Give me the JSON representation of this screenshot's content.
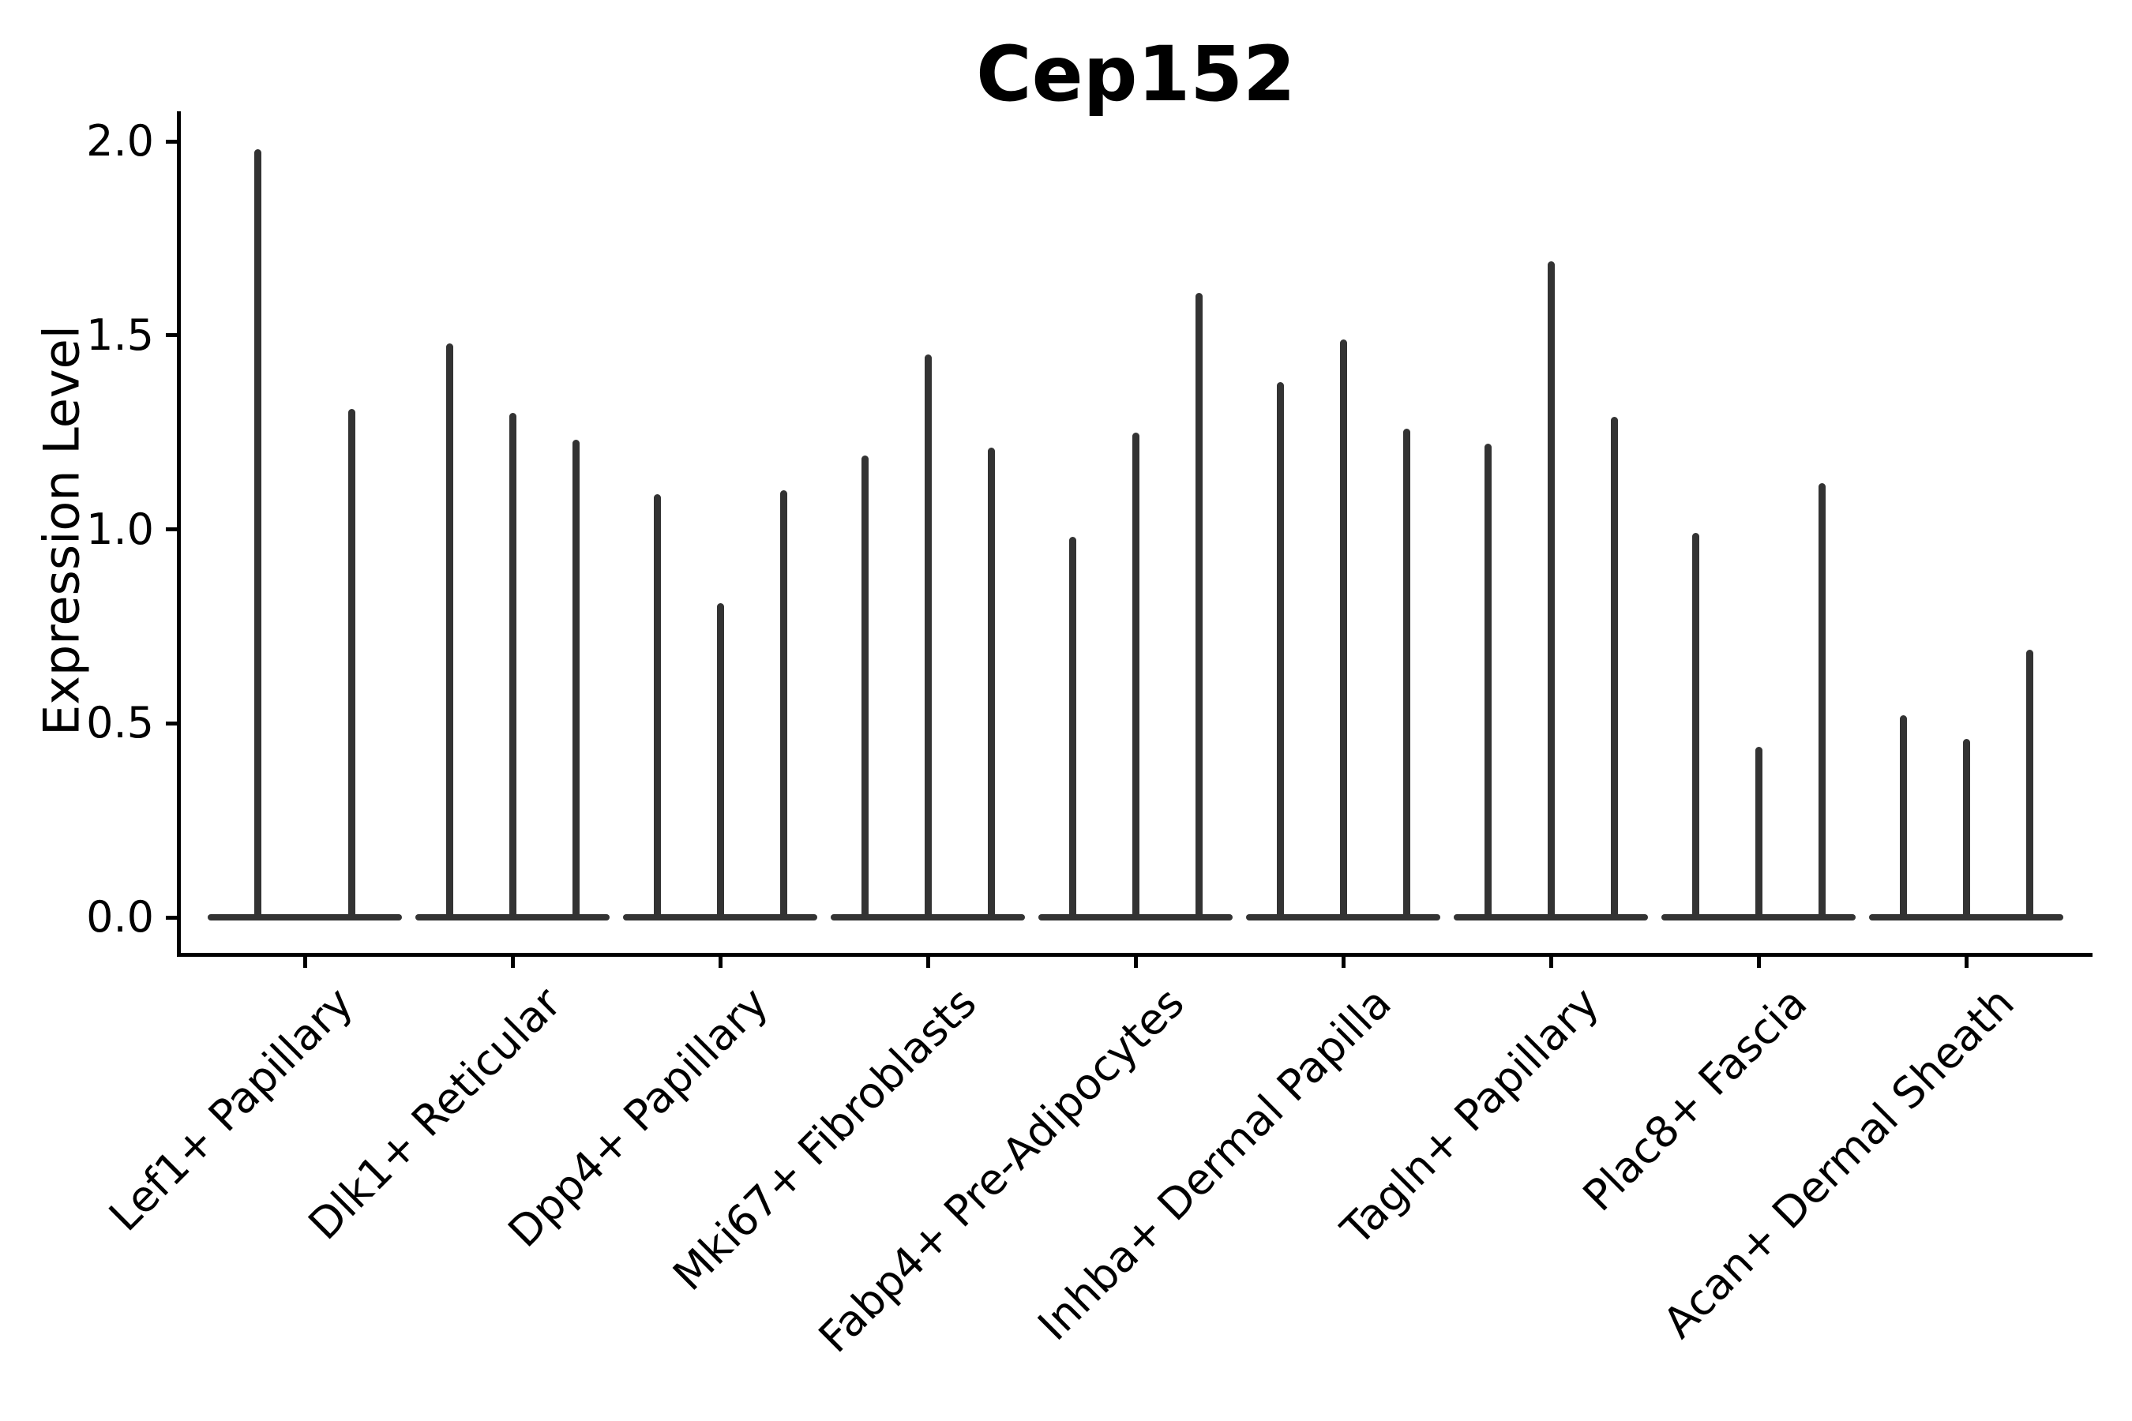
{
  "title": "Cep152",
  "colors": {
    "violin": "#333333",
    "axis": "#000000",
    "text": "#000000",
    "background": "#ffffff"
  },
  "chart_data": {
    "type": "violin",
    "title": "Cep152",
    "xlabel": "",
    "ylabel": "Expression Level",
    "ylim": [
      -0.1,
      2.1
    ],
    "grid": false,
    "legend": null,
    "yticks": [
      {
        "value": 0.0,
        "label": "0.0"
      },
      {
        "value": 0.5,
        "label": "0.5"
      },
      {
        "value": 1.0,
        "label": "1.0"
      },
      {
        "value": 1.5,
        "label": "1.5"
      },
      {
        "value": 2.0,
        "label": "2.0"
      }
    ],
    "categories": [
      "Lef1+ Papillary",
      "Dlk1+ Reticular",
      "Dpp4+ Papillary",
      "Mki67+ Fibroblasts",
      "Fabp4+ Pre-Adipocytes",
      "Inhba+ Dermal Papilla",
      "Tagln+ Papillary",
      "Plac8+ Fascia",
      "Acan+ Dermal Sheath"
    ],
    "groups": [
      {
        "category": "Lef1+ Papillary",
        "violins": [
          {
            "dx": -60,
            "max": 1.98
          },
          {
            "dx": 59,
            "max": 1.31
          }
        ]
      },
      {
        "category": "Dlk1+ Reticular",
        "violins": [
          {
            "dx": -80,
            "max": 1.48
          },
          {
            "dx": 0,
            "max": 1.3
          },
          {
            "dx": 80,
            "max": 1.23
          }
        ]
      },
      {
        "category": "Dpp4+ Papillary",
        "violins": [
          {
            "dx": -80,
            "max": 1.09
          },
          {
            "dx": 0,
            "max": 0.81
          },
          {
            "dx": 80,
            "max": 1.1
          }
        ]
      },
      {
        "category": "Mki67+ Fibroblasts",
        "violins": [
          {
            "dx": -80,
            "max": 1.19
          },
          {
            "dx": 0,
            "max": 1.45
          },
          {
            "dx": 80,
            "max": 1.21
          }
        ]
      },
      {
        "category": "Fabp4+ Pre-Adipocytes",
        "violins": [
          {
            "dx": -80,
            "max": 0.98
          },
          {
            "dx": 0,
            "max": 1.25
          },
          {
            "dx": 80,
            "max": 1.61
          }
        ]
      },
      {
        "category": "Inhba+ Dermal Papilla",
        "violins": [
          {
            "dx": -80,
            "max": 1.38
          },
          {
            "dx": 0,
            "max": 1.49
          },
          {
            "dx": 80,
            "max": 1.26
          }
        ]
      },
      {
        "category": "Tagln+ Papillary",
        "violins": [
          {
            "dx": -80,
            "max": 1.22
          },
          {
            "dx": 0,
            "max": 1.69
          },
          {
            "dx": 80,
            "max": 1.29
          }
        ]
      },
      {
        "category": "Plac8+ Fascia",
        "violins": [
          {
            "dx": -80,
            "max": 0.99
          },
          {
            "dx": 0,
            "max": 0.44
          },
          {
            "dx": 80,
            "max": 1.12
          }
        ]
      },
      {
        "category": "Acan+ Dermal Sheath",
        "violins": [
          {
            "dx": -80,
            "max": 0.52
          },
          {
            "dx": 0,
            "max": 0.46
          },
          {
            "dx": 80,
            "max": 0.69
          }
        ]
      }
    ]
  }
}
